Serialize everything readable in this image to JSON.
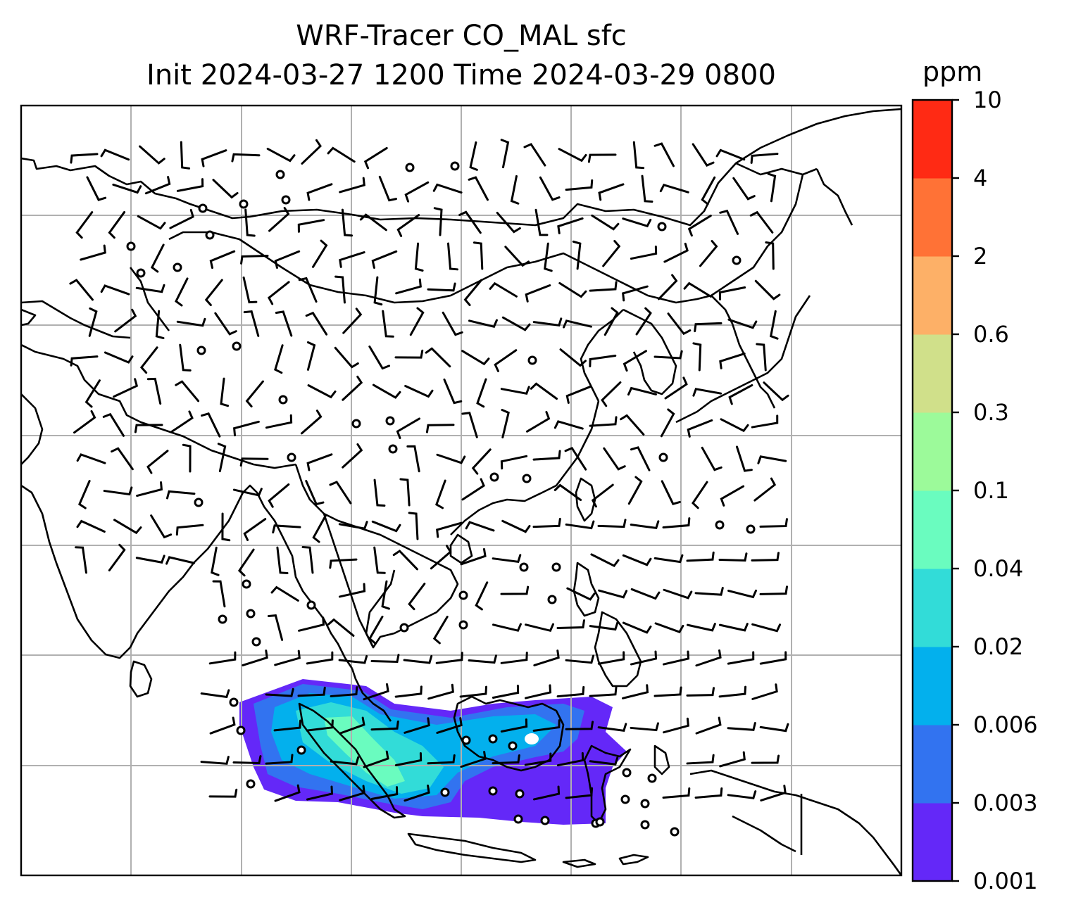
{
  "title": {
    "line1": "WRF-Tracer CO_MAL sfc",
    "line2": "Init 2024-03-27 1200 Time 2024-03-29 0800"
  },
  "colorbar": {
    "unit": "ppm",
    "levels": [
      "0.001",
      "0.003",
      "0.006",
      "0.02",
      "0.04",
      "0.1",
      "0.3",
      "0.6",
      "2",
      "4",
      "10"
    ],
    "colors": [
      "#6428f8",
      "#3273f0",
      "#03b0ed",
      "#32dcd8",
      "#6afcbf",
      "#9cfa9a",
      "#d0e08a",
      "#fdb067",
      "#ff7236",
      "#ff2a14"
    ]
  },
  "map": {
    "frame_color": "#000000",
    "grid_color": "#b0b0b0",
    "coastline_color": "#000000",
    "wind_barb_color": "#000000"
  }
}
